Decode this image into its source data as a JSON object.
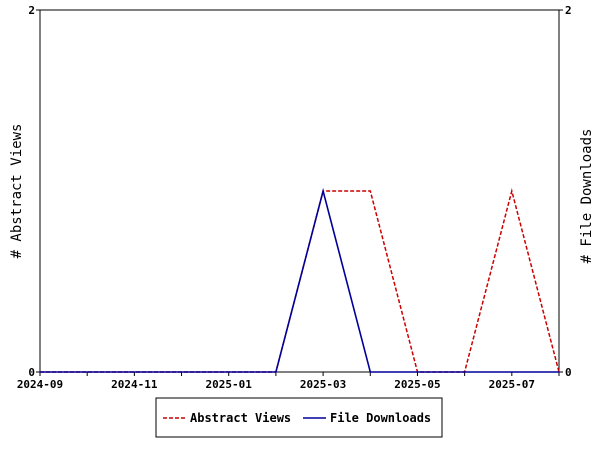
{
  "chart_data": {
    "type": "line",
    "x": [
      "2024-09",
      "2024-10",
      "2024-11",
      "2024-12",
      "2025-01",
      "2025-02",
      "2025-03",
      "2025-04",
      "2025-05",
      "2025-06",
      "2025-07",
      "2025-08"
    ],
    "x_tick_labels": [
      "2024-09",
      "2024-11",
      "2025-01",
      "2025-03",
      "2025-05",
      "2025-07"
    ],
    "series": [
      {
        "name": "Abstract Views",
        "axis": "left",
        "color": "#cc0000",
        "style": "dashed",
        "values": [
          0,
          0,
          0,
          0,
          0,
          0,
          1,
          1,
          0,
          0,
          1,
          0
        ]
      },
      {
        "name": "File Downloads",
        "axis": "right",
        "color": "#000099",
        "style": "solid",
        "values": [
          0,
          0,
          0,
          0,
          0,
          0,
          1,
          0,
          0,
          0,
          0,
          0
        ]
      }
    ],
    "ylabel_left": "# Abstract Views",
    "ylabel_right": "# File Downloads",
    "ylim_left": [
      0,
      2
    ],
    "ylim_right": [
      0,
      2
    ],
    "y_ticks_left": [
      "0",
      "2"
    ],
    "y_ticks_right": [
      "0",
      "2"
    ],
    "grid": false,
    "legend_placement": "bottom"
  }
}
